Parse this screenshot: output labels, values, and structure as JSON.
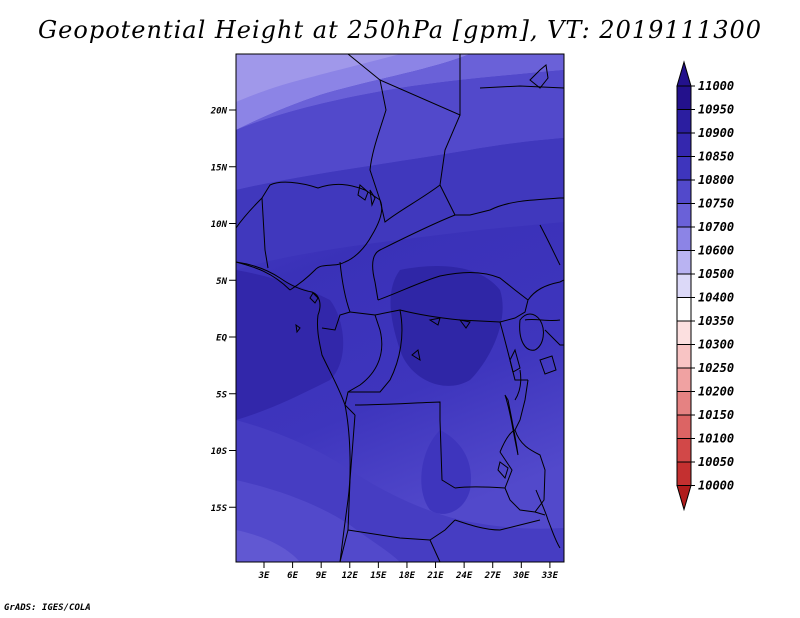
{
  "title": "Geopotential Height at 250hPa [gpm], VT: 2019111300",
  "credit": "GrADS: IGES/COLA",
  "map": {
    "lat_labels": [
      {
        "text": "20N",
        "lat": 20
      },
      {
        "text": "15N",
        "lat": 15
      },
      {
        "text": "10N",
        "lat": 10
      },
      {
        "text": "5N",
        "lat": 5
      },
      {
        "text": "EQ",
        "lat": 0
      },
      {
        "text": "5S",
        "lat": -5
      },
      {
        "text": "10S",
        "lat": -10
      },
      {
        "text": "15S",
        "lat": -15
      }
    ],
    "lon_labels": [
      {
        "text": "3E",
        "lon": 3
      },
      {
        "text": "6E",
        "lon": 6
      },
      {
        "text": "9E",
        "lon": 9
      },
      {
        "text": "12E",
        "lon": 12
      },
      {
        "text": "15E",
        "lon": 15
      },
      {
        "text": "18E",
        "lon": 18
      },
      {
        "text": "21E",
        "lon": 21
      },
      {
        "text": "24E",
        "lon": 24
      },
      {
        "text": "27E",
        "lon": 27
      },
      {
        "text": "30E",
        "lon": 30
      },
      {
        "text": "33E",
        "lon": 33
      }
    ]
  },
  "colorbar": {
    "levels": [
      {
        "label": "11000",
        "color": "#23118c"
      },
      {
        "label": "10950",
        "color": "#2b1ea0"
      },
      {
        "label": "10900",
        "color": "#3427ae"
      },
      {
        "label": "10850",
        "color": "#3e35bd"
      },
      {
        "label": "10800",
        "color": "#5249cb"
      },
      {
        "label": "10750",
        "color": "#6a61d8"
      },
      {
        "label": "10700",
        "color": "#8c84e6"
      },
      {
        "label": "10600",
        "color": "#b9b3f2"
      },
      {
        "label": "10500",
        "color": "#dcd9f8"
      },
      {
        "label": "10400",
        "color": "#ffffff"
      },
      {
        "label": "10350",
        "color": "#fce0e0"
      },
      {
        "label": "10300",
        "color": "#f8c4c4"
      },
      {
        "label": "10250",
        "color": "#f0a2a2"
      },
      {
        "label": "10200",
        "color": "#e58282"
      },
      {
        "label": "10150",
        "color": "#dc6464"
      },
      {
        "label": "10100",
        "color": "#d24848"
      },
      {
        "label": "10050",
        "color": "#c43030"
      },
      {
        "label": "10000",
        "color": "#b01c1c"
      }
    ]
  }
}
